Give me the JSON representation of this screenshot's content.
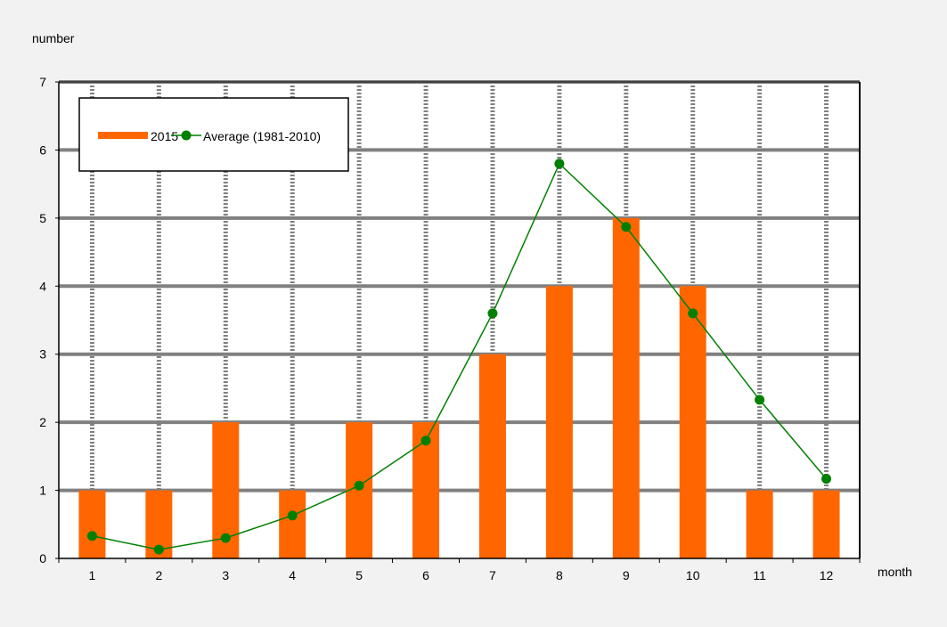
{
  "colors": {
    "background": "#f2f2f2",
    "plot_area": "#ffffff",
    "grid_major": "#808080",
    "bar": "#ff6600",
    "line": "#008000"
  },
  "chart_data": {
    "type": "bar",
    "title": "",
    "xlabel": "month",
    "ylabel": "number",
    "categories": [
      "1",
      "2",
      "3",
      "4",
      "5",
      "6",
      "7",
      "8",
      "9",
      "10",
      "11",
      "12"
    ],
    "ylim": [
      0,
      7
    ],
    "yticks": [
      "0",
      "1",
      "2",
      "3",
      "4",
      "5",
      "6",
      "7"
    ],
    "grid": true,
    "legend_position": "top-left",
    "series": [
      {
        "name": "2015",
        "type": "bar",
        "color": "#ff6600",
        "values": [
          1,
          1,
          2,
          1,
          2,
          2,
          3,
          4,
          5,
          4,
          1,
          1
        ]
      },
      {
        "name": "Average (1981-2010)",
        "type": "line",
        "marker": "circle",
        "color": "#008000",
        "values": [
          0.33,
          0.13,
          0.3,
          0.63,
          1.07,
          1.73,
          3.6,
          5.8,
          4.87,
          3.6,
          2.33,
          1.17
        ]
      }
    ]
  }
}
